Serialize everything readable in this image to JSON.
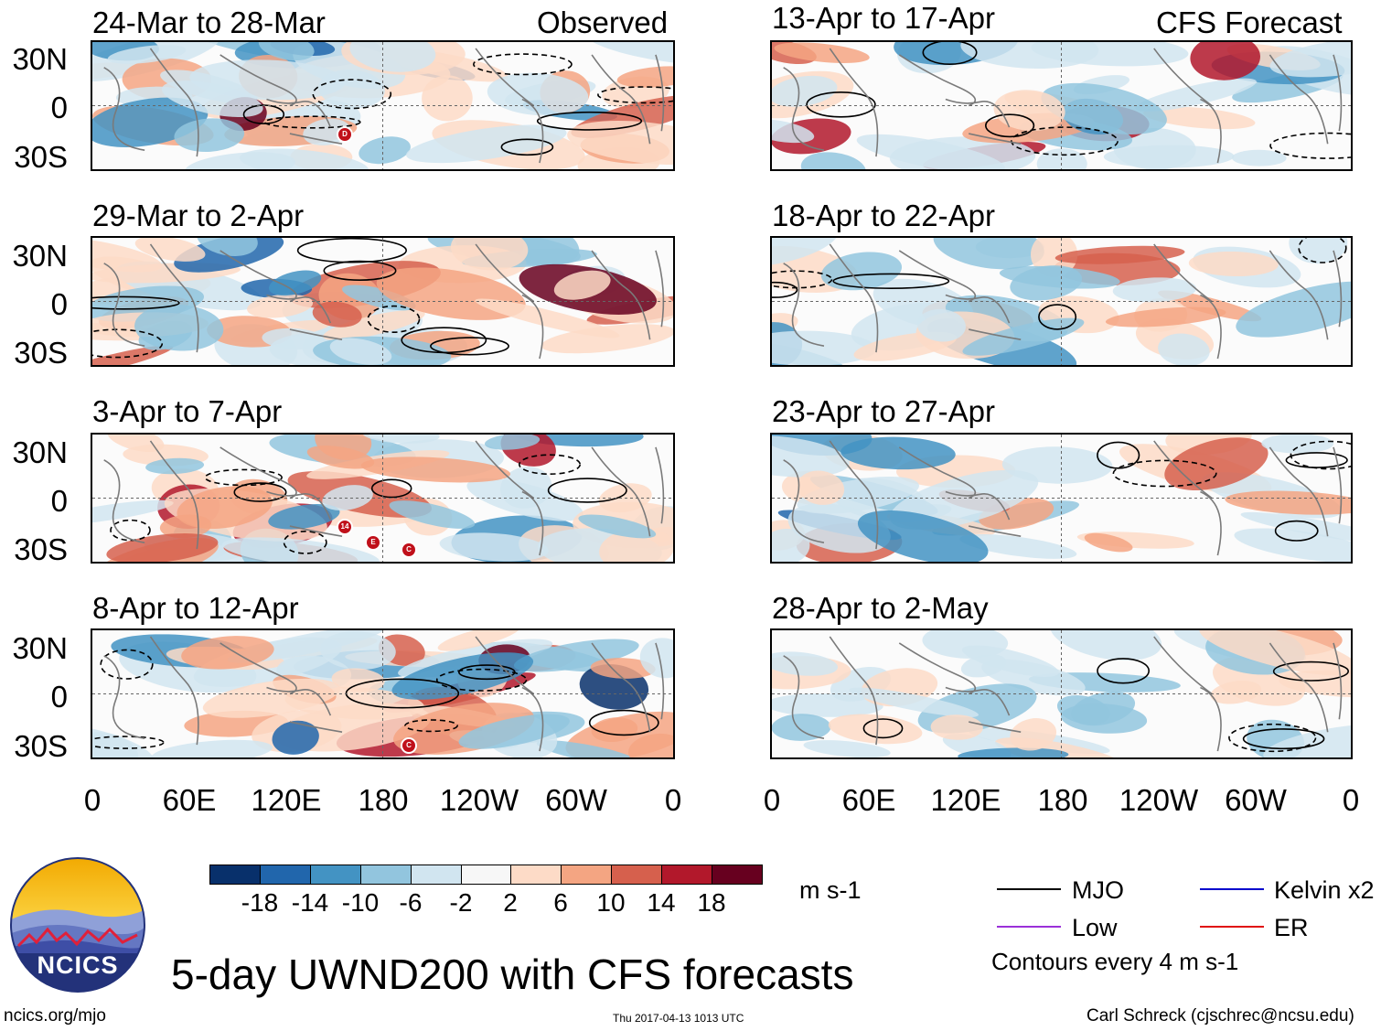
{
  "header": {
    "observed_label": "Observed",
    "forecast_label": "CFS Forecast"
  },
  "panels": [
    {
      "title": "24-Mar to 28-Mar",
      "column": "observed",
      "storm_markers": [
        "D"
      ]
    },
    {
      "title": "29-Mar to 2-Apr",
      "column": "observed",
      "storm_markers": []
    },
    {
      "title": "3-Apr to 7-Apr",
      "column": "observed",
      "storm_markers": [
        "E",
        "C",
        "14"
      ]
    },
    {
      "title": "8-Apr to 12-Apr",
      "column": "observed",
      "storm_markers": [
        "C"
      ]
    },
    {
      "title": "13-Apr to 17-Apr",
      "column": "forecast",
      "storm_markers": []
    },
    {
      "title": "18-Apr to 22-Apr",
      "column": "forecast",
      "storm_markers": []
    },
    {
      "title": "23-Apr to 27-Apr",
      "column": "forecast",
      "storm_markers": []
    },
    {
      "title": "28-Apr to 2-May",
      "column": "forecast",
      "storm_markers": []
    }
  ],
  "y_axis": [
    "30N",
    "0",
    "30S"
  ],
  "x_axis": [
    "0",
    "60E",
    "120E",
    "180",
    "120W",
    "60W",
    "0"
  ],
  "colorbar": {
    "colors": [
      "#08306b",
      "#2166ac",
      "#4393c3",
      "#92c5de",
      "#d1e5f0",
      "#f7f7f7",
      "#fddbc7",
      "#f4a582",
      "#d6604d",
      "#b2182b",
      "#67001f"
    ],
    "labels": [
      "-18",
      "-14",
      "-10",
      "-6",
      "-2",
      "2",
      "6",
      "10",
      "14",
      "18"
    ],
    "units": "m s-1"
  },
  "legend": {
    "items": [
      {
        "label": "MJO",
        "color": "#000000"
      },
      {
        "label": "Kelvin x2",
        "color": "#0000cc"
      },
      {
        "label": "Low",
        "color": "#9b30d9"
      },
      {
        "label": "ER",
        "color": "#e01010"
      }
    ],
    "contour_note": "Contours every 4 m s-1"
  },
  "logo": {
    "text": "NCICS"
  },
  "main_title": "5-day UWND200 with CFS forecasts",
  "footer": {
    "url": "ncics.org/mjo",
    "timestamp": "Thu 2017-04-13 1013 UTC",
    "author": "Carl Schreck (cjschrec@ncsu.edu)"
  }
}
